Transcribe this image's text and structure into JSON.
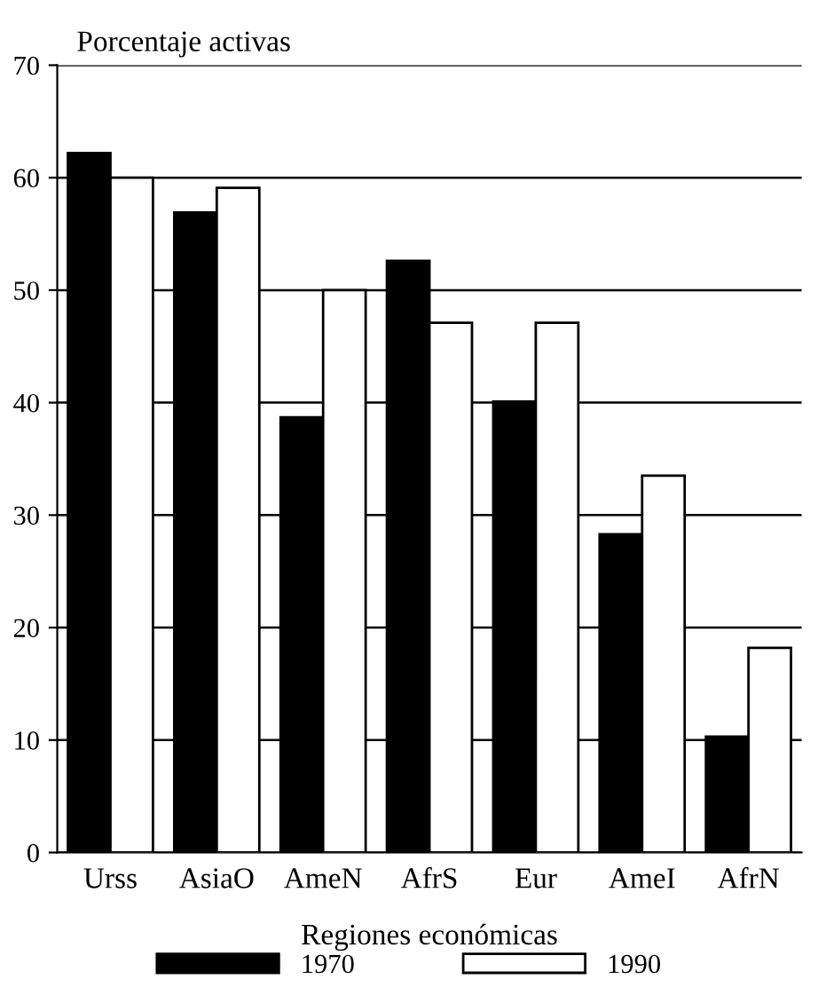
{
  "chart_data": {
    "type": "bar",
    "ylabel": "Porcentaje activas",
    "xlabel": "Regiones económicas",
    "categories": [
      "Urss",
      "AsiaO",
      "AmeN",
      "AfrS",
      "Eur",
      "AmeI",
      "AfrN"
    ],
    "series": [
      {
        "name": "1970",
        "color": "#000000",
        "values": [
          62.2,
          56.9,
          38.7,
          52.6,
          40.1,
          28.3,
          10.3
        ]
      },
      {
        "name": "1990",
        "color": "#ffffff",
        "values": [
          60.0,
          59.1,
          50.0,
          47.1,
          47.1,
          33.5,
          18.2
        ]
      }
    ],
    "ylim": [
      0,
      70
    ],
    "yticks": [
      0,
      10,
      20,
      30,
      40,
      50,
      60,
      70
    ],
    "grid": "y",
    "legend": "bottom"
  }
}
